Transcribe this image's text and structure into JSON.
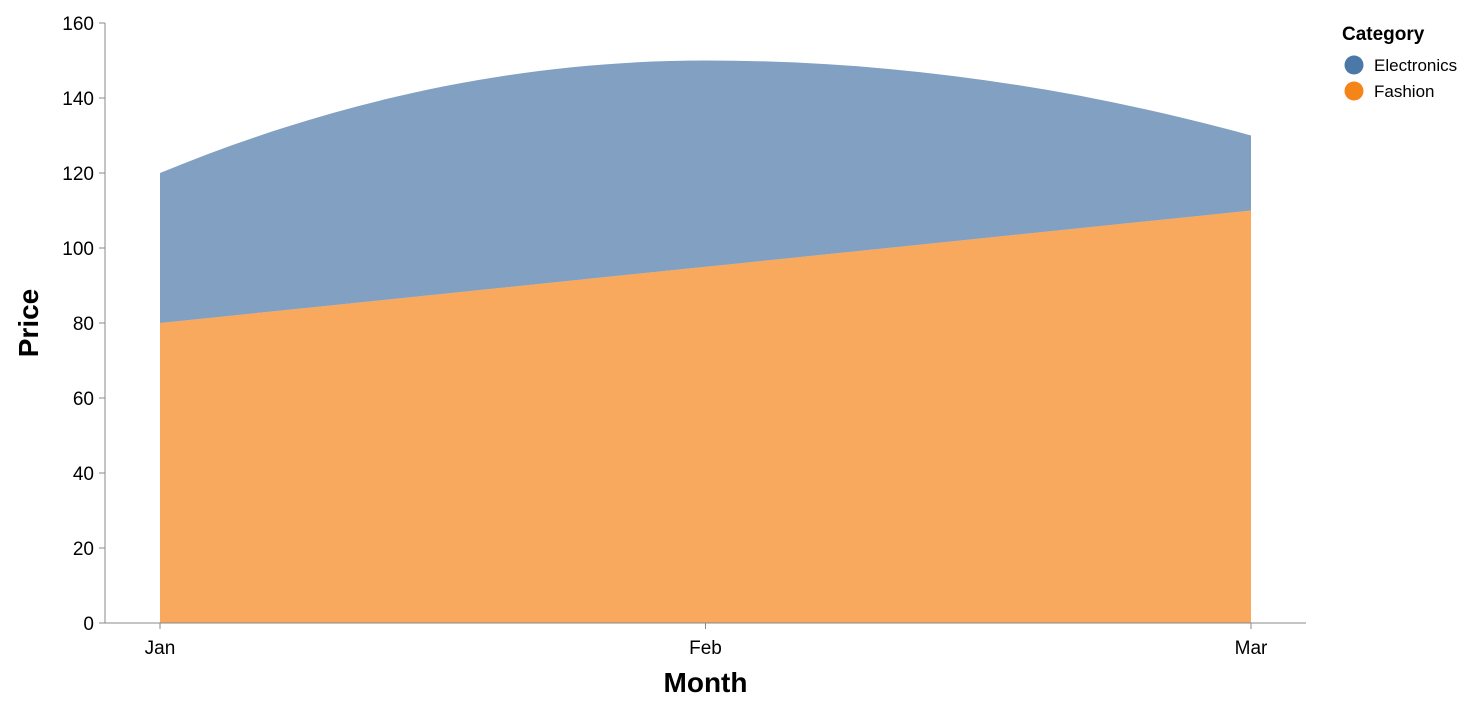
{
  "chart_data": {
    "type": "area",
    "stacked": true,
    "interpolation": "monotone",
    "categories": [
      "Jan",
      "Feb",
      "Mar"
    ],
    "series": [
      {
        "name": "Fashion",
        "values": [
          80,
          95,
          110
        ],
        "color": "#f58518"
      },
      {
        "name": "Electronics",
        "values": [
          40,
          55,
          20
        ],
        "color": "#4c78a8"
      }
    ],
    "xlabel": "Month",
    "ylabel": "Price",
    "ylim": [
      0,
      160
    ],
    "yticks": [
      0,
      20,
      40,
      60,
      80,
      100,
      120,
      140,
      160
    ],
    "grid": false,
    "area_opacity": 0.7,
    "legend": {
      "title": "Category",
      "position": "top-right",
      "items": [
        {
          "label": "Electronics",
          "color": "#4c78a8"
        },
        {
          "label": "Fashion",
          "color": "#f58518"
        }
      ]
    }
  }
}
